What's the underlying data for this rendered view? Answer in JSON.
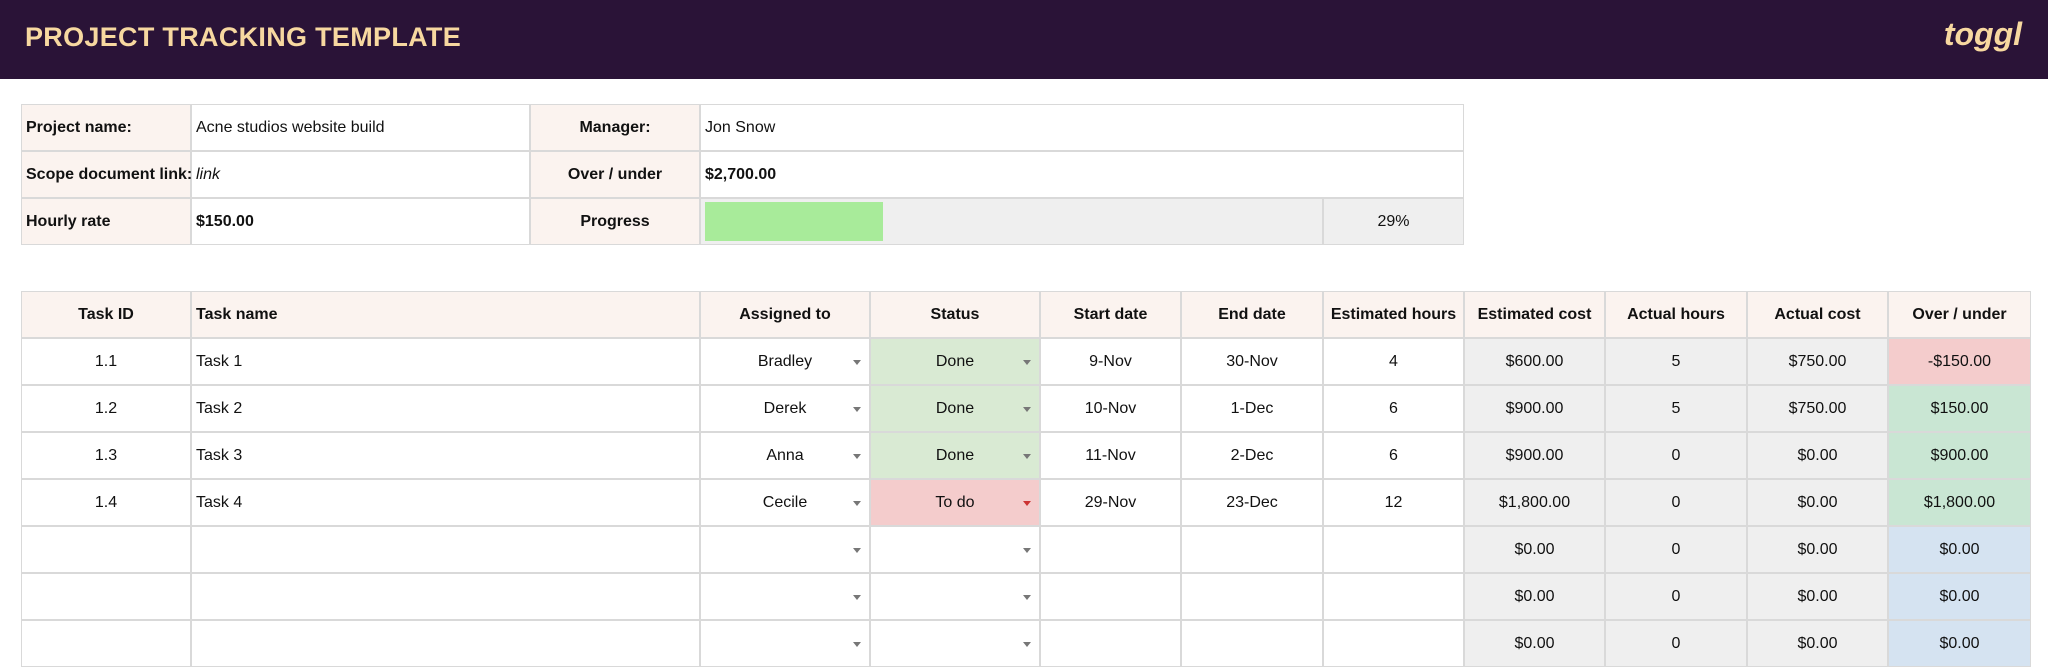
{
  "header": {
    "title": "PROJECT TRACKING TEMPLATE",
    "logo": "toggl"
  },
  "info": {
    "project_name_label": "Project name:",
    "project_name": "Acne studios website build",
    "manager_label": "Manager:",
    "manager": "Jon Snow",
    "scope_label": "Scope document link:",
    "scope": "link",
    "over_under_label": "Over / under",
    "over_under": "$2,700.00",
    "hourly_rate_label": "Hourly rate",
    "hourly_rate": "$150.00",
    "progress_label": "Progress",
    "progress": {
      "value": 29,
      "label": "29%"
    }
  },
  "table": {
    "columns": [
      "Task ID",
      "Task name",
      "Assigned to",
      "Status",
      "Start date",
      "End date",
      "Estimated hours",
      "Estimated cost",
      "Actual hours",
      "Actual cost",
      "Over / under"
    ],
    "rows": [
      [
        "1.1",
        "Task 1",
        "Bradley",
        "Done",
        "9-Nov",
        "30-Nov",
        "4",
        "$600.00",
        "5",
        "$750.00",
        "-$150.00"
      ],
      [
        "1.2",
        "Task 2",
        "Derek",
        "Done",
        "10-Nov",
        "1-Dec",
        "6",
        "$900.00",
        "5",
        "$750.00",
        "$150.00"
      ],
      [
        "1.3",
        "Task 3",
        "Anna",
        "Done",
        "11-Nov",
        "2-Dec",
        "6",
        "$900.00",
        "0",
        "$0.00",
        "$900.00"
      ],
      [
        "1.4",
        "Task 4",
        "Cecile",
        "To do",
        "29-Nov",
        "23-Dec",
        "12",
        "$1,800.00",
        "0",
        "$0.00",
        "$1,800.00"
      ],
      [
        null,
        null,
        null,
        null,
        null,
        null,
        null,
        "$0.00",
        "0",
        "$0.00",
        "$0.00"
      ],
      [
        null,
        null,
        null,
        null,
        null,
        null,
        null,
        "$0.00",
        "0",
        "$0.00",
        "$0.00"
      ],
      [
        null,
        null,
        null,
        null,
        null,
        null,
        null,
        "$0.00",
        "0",
        "$0.00",
        "$0.00"
      ]
    ]
  }
}
